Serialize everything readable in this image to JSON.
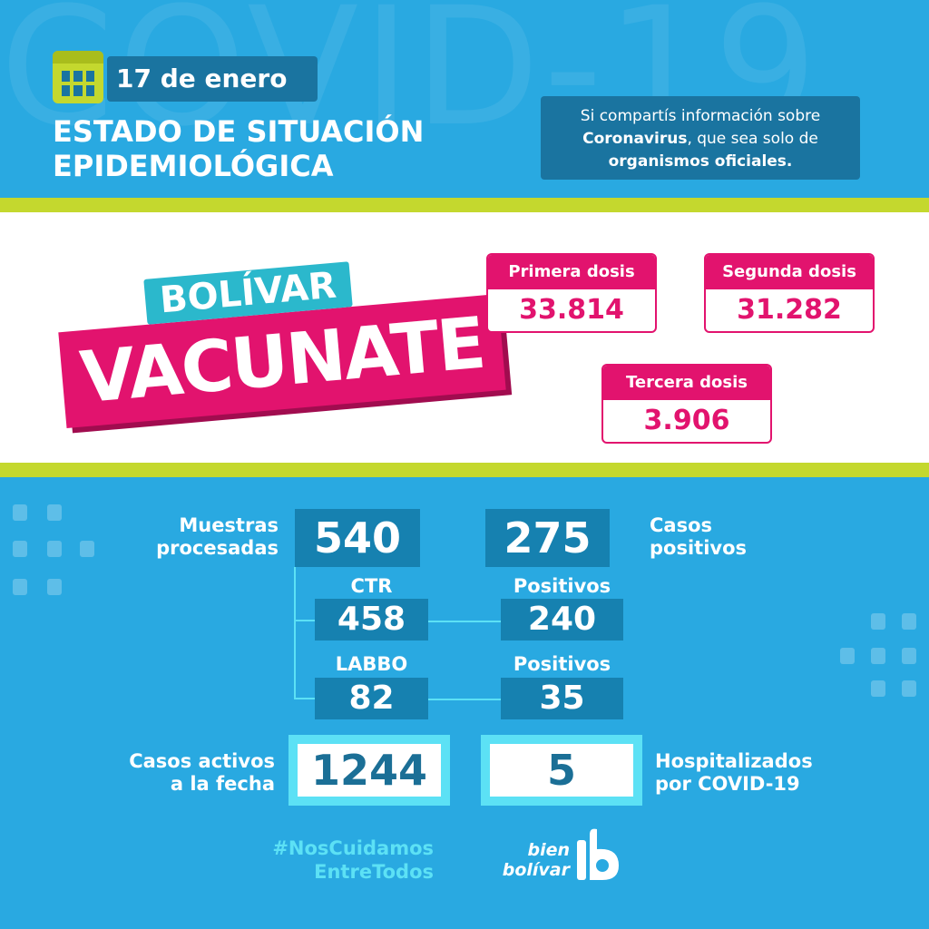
{
  "watermark": "COVID-19",
  "header": {
    "date": "17 de enero",
    "title_line1": "ESTADO DE SITUACIÓN",
    "title_line2": "EPIDEMIOLÓGICA",
    "notice": {
      "line1": "Si compartís información sobre",
      "line2_bold": "Coronavirus",
      "line2_rest": ", que sea solo de",
      "line3_bold": "organismos oficiales."
    }
  },
  "campaign": {
    "line1": "BOLÍVAR",
    "line2": "VACUNATE"
  },
  "doses": [
    {
      "label": "Primera dosis",
      "value": "33.814"
    },
    {
      "label": "Segunda dosis",
      "value": "31.282"
    },
    {
      "label": "Tercera dosis",
      "value": "3.906"
    }
  ],
  "stats": {
    "muestras_label1": "Muestras",
    "muestras_label2": "procesadas",
    "muestras": "540",
    "casos_label1": "Casos",
    "casos_label2": "positivos",
    "casos": "275",
    "ctr_label": "CTR",
    "ctr": "458",
    "ctr_pos_label": "Positivos",
    "ctr_pos": "240",
    "labbo_label": "LABBO",
    "labbo": "82",
    "labbo_pos_label": "Positivos",
    "labbo_pos": "35",
    "activos_label1": "Casos activos",
    "activos_label2": "a la fecha",
    "activos": "1244",
    "hosp_label1": "Hospitalizados",
    "hosp_label2": "por COVID-19",
    "hosp": "5"
  },
  "footer": {
    "hashtag1": "#NosCuidamos",
    "hashtag2": "EntreTodos",
    "brand1": "bien",
    "brand2": "bolívar"
  },
  "colors": {
    "blue": "#29a9e1",
    "dark": "#1681b0",
    "green": "#c4d82e",
    "pink": "#e2136e",
    "cyan": "#5ce1f5"
  }
}
